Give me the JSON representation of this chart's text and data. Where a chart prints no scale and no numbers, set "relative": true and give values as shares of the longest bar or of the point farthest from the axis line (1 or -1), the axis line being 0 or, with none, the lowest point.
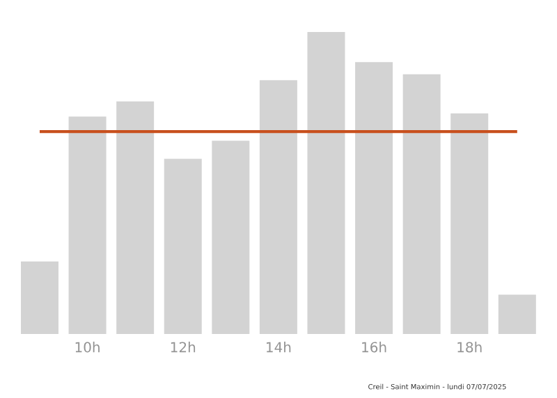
{
  "chart_data": {
    "type": "bar",
    "categories": [
      null,
      "10h",
      null,
      "12h",
      null,
      "14h",
      null,
      "16h",
      null,
      "18h",
      null
    ],
    "values": [
      0.24,
      0.72,
      0.77,
      0.58,
      0.64,
      0.84,
      1,
      0.9,
      0.86,
      0.73,
      0.13
    ],
    "color": "#d3d3d3",
    "relative": true,
    "ref_lines": [
      {
        "axis": "y",
        "value": 0.67,
        "color": "#c8501e"
      }
    ],
    "annotations": [
      "Creil - Saint Maximin - lundi 07/07/2025"
    ]
  }
}
